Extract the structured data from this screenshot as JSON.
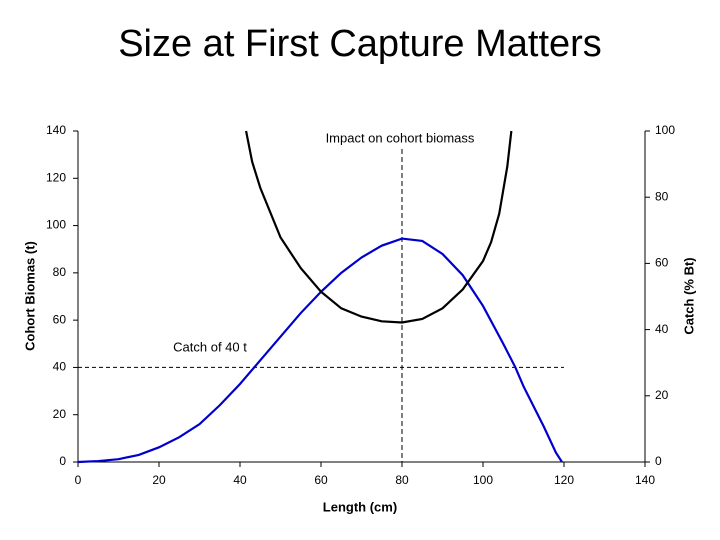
{
  "chart_data": {
    "type": "line",
    "title": "Size at First Capture Matters",
    "x_label": "Length (cm)",
    "y_label": "Cohort Biomas (t)",
    "y2_label": "Catch (% Bt)",
    "annotations": [
      "Impact on cohort biomass",
      "Catch of 40 t"
    ],
    "xlim": [
      0,
      140
    ],
    "xticks": [
      0,
      20,
      40,
      60,
      80,
      100,
      120,
      140
    ],
    "ylim": [
      0,
      140
    ],
    "yticks": [
      0,
      20,
      40,
      60,
      80,
      100,
      120,
      140
    ],
    "y2lim": [
      0,
      100
    ],
    "y2ticks": [
      0,
      20,
      40,
      60,
      80,
      100
    ],
    "reference_lines": [
      {
        "axis": "x",
        "value": 80
      },
      {
        "axis": "y",
        "value": 40,
        "to": 120
      }
    ],
    "series": [
      {
        "color": "#0000cc",
        "x": [
          0,
          5,
          10,
          15,
          20,
          25,
          30,
          35,
          40,
          45,
          50,
          55,
          60,
          65,
          70,
          75,
          80,
          85,
          90,
          95,
          100,
          105,
          108,
          110,
          115,
          118,
          119.5
        ],
        "values": [
          0,
          0.4,
          1.2,
          3,
          6.2,
          10.5,
          16,
          24,
          33,
          43,
          53,
          63,
          72,
          80,
          86.5,
          91.5,
          94.5,
          93.5,
          88,
          79,
          66,
          50,
          40,
          32,
          15,
          4,
          0
        ]
      },
      {
        "color": "#000000",
        "x": [
          41.5,
          43,
          45,
          50,
          55,
          60,
          65,
          70,
          75,
          80,
          85,
          90,
          95,
          100,
          102,
          104,
          106,
          107
        ],
        "values": [
          140,
          127,
          116,
          95,
          82,
          72,
          65,
          61.5,
          59.5,
          59,
          60.5,
          65,
          73,
          85,
          93,
          105,
          125,
          140
        ]
      }
    ]
  }
}
